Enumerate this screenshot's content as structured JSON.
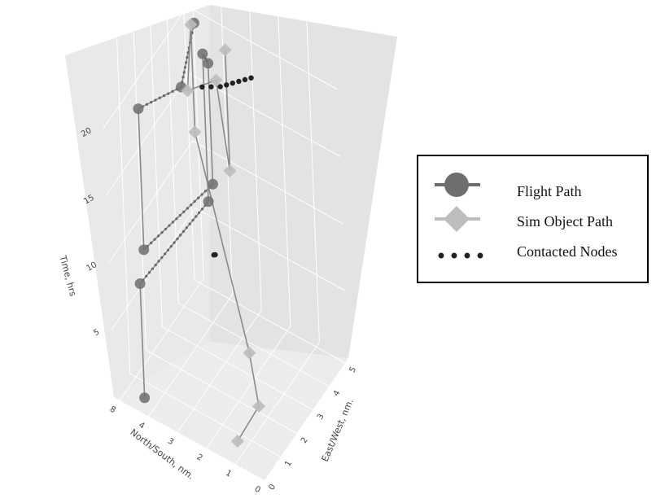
{
  "chart_data": {
    "type": "scatter3d",
    "title": "",
    "axes": {
      "x": {
        "label": "East/West, nm.",
        "ticks": [
          "0",
          "1",
          "2",
          "3",
          "4",
          "5"
        ]
      },
      "y": {
        "label": "North/South, nm.",
        "ticks": [
          "0",
          "1",
          "2",
          "3",
          "4",
          "8"
        ]
      },
      "z": {
        "label": "Time, hrs",
        "ticks": [
          "5",
          "10",
          "15",
          "20"
        ]
      }
    },
    "grid": true,
    "legend_position": "right",
    "legend": [
      {
        "label": "Flight Path",
        "marker": "circle",
        "color": "#6e6e6e"
      },
      {
        "label": "Sim Object Path",
        "marker": "diamond",
        "color": "#bdbdbd"
      },
      {
        "label": "Contacted Nodes",
        "marker": "dots",
        "color": "#222222"
      }
    ],
    "series": [
      {
        "name": "Flight Path",
        "color": "#6e6e6e",
        "marker": "circle",
        "points": [
          {
            "ew": 0.3,
            "ns": 4.3,
            "t": 0.5
          },
          {
            "ew": 0.3,
            "ns": 4.3,
            "t": 9.0
          },
          {
            "ew": 4.0,
            "ns": 4.0,
            "t": 9.0
          },
          {
            "ew": 4.0,
            "ns": 4.0,
            "t": 20.0
          },
          {
            "ew": 3.8,
            "ns": 3.7,
            "t": 20.0
          },
          {
            "ew": 3.8,
            "ns": 3.7,
            "t": 11.0
          },
          {
            "ew": 0.6,
            "ns": 4.3,
            "t": 11.0
          },
          {
            "ew": 0.6,
            "ns": 4.3,
            "t": 21.5
          },
          {
            "ew": 2.0,
            "ns": 3.6,
            "t": 21.5
          },
          {
            "ew": 4.4,
            "ns": 4.5,
            "t": 21.0
          }
        ]
      },
      {
        "name": "Sim Object Path",
        "color": "#bdbdbd",
        "marker": "diamond",
        "points": [
          {
            "ew": 0.5,
            "ns": 1.2,
            "t": 0.6
          },
          {
            "ew": 1.5,
            "ns": 1.0,
            "t": 1.7
          },
          {
            "ew": 1.4,
            "ns": 1.2,
            "t": 5.6
          },
          {
            "ew": 4.7,
            "ns": 4.8,
            "t": 12.0
          },
          {
            "ew": 4.7,
            "ns": 4.8,
            "t": 20.0
          },
          {
            "ew": 2.2,
            "ns": 3.5,
            "t": 21.0
          },
          {
            "ew": 2.4,
            "ns": 2.6,
            "t": 22.5
          },
          {
            "ew": 4.5,
            "ns": 3.5,
            "t": 11.0
          },
          {
            "ew": 4.5,
            "ns": 3.5,
            "t": 20.0
          }
        ]
      },
      {
        "name": "Contacted Nodes",
        "color": "#222222",
        "marker": "dots",
        "points": [
          {
            "ew": 2.4,
            "ns": 3.1,
            "t": 21.4
          },
          {
            "ew": 2.6,
            "ns": 2.9,
            "t": 21.3
          },
          {
            "ew": 2.8,
            "ns": 2.7,
            "t": 21.2
          },
          {
            "ew": 3.0,
            "ns": 2.6,
            "t": 21.1
          },
          {
            "ew": 3.2,
            "ns": 2.5,
            "t": 21.0
          },
          {
            "ew": 3.4,
            "ns": 2.4,
            "t": 20.9
          },
          {
            "ew": 3.6,
            "ns": 2.3,
            "t": 20.8
          },
          {
            "ew": 3.8,
            "ns": 2.2,
            "t": 20.7
          },
          {
            "ew": 2.2,
            "ns": 2.8,
            "t": 9.6
          },
          {
            "ew": 2.25,
            "ns": 2.78,
            "t": 9.55
          }
        ]
      }
    ]
  }
}
